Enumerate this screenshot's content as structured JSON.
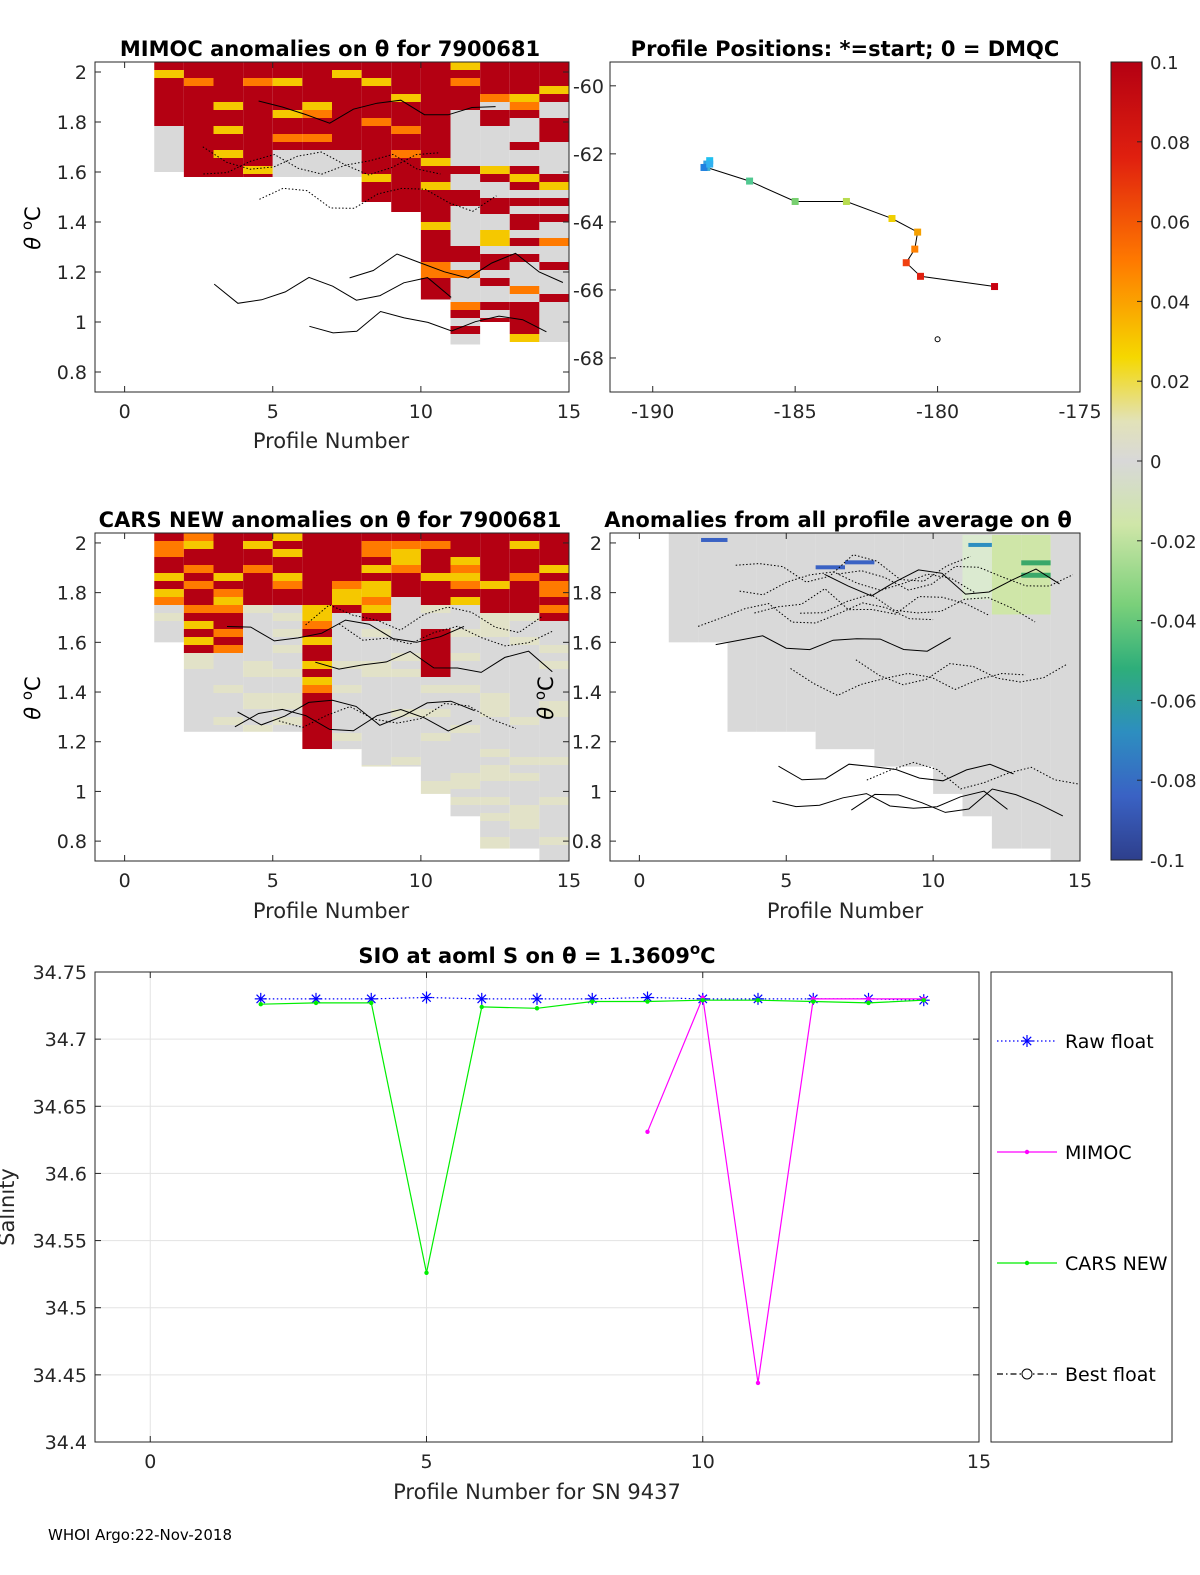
{
  "footer": "WHOI Argo:22-Nov-2018",
  "chart_data": [
    {
      "id": "mimoc",
      "type": "heatmap",
      "title": "MIMOC anomalies on θ  for 7900681",
      "xlabel": "Profile Number",
      "ylabel": "θ °C",
      "xlim": [
        -1,
        15
      ],
      "ylim": [
        0.72,
        2.04
      ],
      "xticks": [
        0,
        5,
        10,
        15
      ],
      "yticks": [
        0.8,
        1,
        1.2,
        1.4,
        1.6,
        1.8,
        2
      ],
      "profiles": [
        1,
        2,
        3,
        4,
        5,
        6,
        7,
        8,
        9,
        10,
        11,
        12,
        13,
        14
      ],
      "theta_min": [
        1.6,
        1.58,
        1.58,
        1.58,
        1.58,
        1.58,
        1.58,
        1.48,
        1.44,
        1.09,
        0.91,
        1.0,
        0.92,
        0.92
      ],
      "description_values": "anomaly range -0.1..0.1"
    },
    {
      "id": "positions",
      "type": "scatter",
      "title": "Profile Positions: *=start; 0 = DMQC",
      "xlim": [
        -191.5,
        -175
      ],
      "ylim": [
        -69,
        -59.3
      ],
      "xticks": [
        -190,
        -185,
        -180,
        -175
      ],
      "yticks": [
        -68,
        -66,
        -64,
        -62,
        -60
      ],
      "lon": [
        -178.0,
        -180.6,
        -181.1,
        -180.8,
        -180.7,
        -181.6,
        -183.2,
        -185.0,
        -186.6,
        -188.1,
        -188.1,
        -188.0,
        -188.2,
        -188.0
      ],
      "lat": [
        -65.9,
        -65.6,
        -65.2,
        -64.8,
        -64.3,
        -63.9,
        -63.4,
        -63.4,
        -62.8,
        -62.4,
        -62.3,
        -62.2,
        -62.4,
        -62.3
      ],
      "extra_marker": {
        "lon": -180.0,
        "lat": -67.45
      }
    },
    {
      "id": "cars",
      "type": "heatmap",
      "title": "CARS NEW anomalies on θ for 7900681",
      "xlabel": "Profile Number",
      "ylabel": "θ °C",
      "xlim": [
        -1,
        15
      ],
      "ylim": [
        0.72,
        2.04
      ],
      "xticks": [
        0,
        5,
        10,
        15
      ],
      "yticks": [
        0.8,
        1,
        1.2,
        1.4,
        1.6,
        1.8,
        2
      ],
      "profiles": [
        1,
        2,
        3,
        4,
        5,
        6,
        7,
        8,
        9,
        10,
        11,
        12,
        13,
        14
      ],
      "theta_min": [
        1.6,
        1.24,
        1.24,
        1.24,
        1.24,
        1.17,
        1.17,
        1.1,
        1.1,
        0.99,
        0.9,
        0.77,
        0.77,
        0.72
      ]
    },
    {
      "id": "avg",
      "type": "heatmap",
      "title": "Anomalies from all profile average on θ",
      "xlabel": "Profile Number",
      "xlim": [
        -1,
        15
      ],
      "ylim": [
        0.72,
        2.04
      ],
      "xticks": [
        0,
        5,
        10,
        15
      ],
      "yticks": [
        0.8,
        1,
        1.2,
        1.4,
        1.6,
        1.8,
        2
      ],
      "profiles": [
        1,
        2,
        3,
        4,
        5,
        6,
        7,
        8,
        9,
        10,
        11,
        12,
        13,
        14
      ],
      "theta_min": [
        1.6,
        1.6,
        1.24,
        1.24,
        1.24,
        1.17,
        1.17,
        1.1,
        1.1,
        0.99,
        0.9,
        0.77,
        0.77,
        0.72
      ]
    },
    {
      "id": "colorbar",
      "type": "colorbar",
      "range": [
        -0.1,
        0.1
      ],
      "tick_labels": [
        "0.1",
        "0.08",
        "0.06",
        "0.04",
        "0.02",
        "0",
        "-0.02",
        "-0.04",
        "-0.06",
        "-0.08",
        "-0.1"
      ],
      "tick_values": [
        0.1,
        0.08,
        0.06,
        0.04,
        0.02,
        0,
        -0.02,
        -0.04,
        -0.06,
        -0.08,
        -0.1
      ]
    },
    {
      "id": "salinity",
      "type": "line",
      "title": "SIO at aoml S on θ = 1.3609°C",
      "title_main": "SIO at aoml S on θ = 1.3609",
      "title_sup": "o",
      "title_unit": "C",
      "xlabel": "Profile Number for SN 9437",
      "ylabel": "Salinity",
      "xlim": [
        -1,
        15
      ],
      "ylim": [
        34.4,
        34.75
      ],
      "xticks": [
        0,
        5,
        10,
        15
      ],
      "yticks": [
        34.4,
        34.45,
        34.5,
        34.55,
        34.6,
        34.65,
        34.7,
        34.75
      ],
      "ytick_labels": [
        "34.4",
        "34.45",
        "34.5",
        "34.55",
        "34.6",
        "34.65",
        "34.7",
        "34.75"
      ],
      "grid": true,
      "series": [
        {
          "name": "Raw float",
          "color": "#0000ff",
          "x": [
            2,
            3,
            4,
            5,
            6,
            7,
            8,
            9,
            10,
            11,
            12,
            13,
            14
          ],
          "y": [
            34.73,
            34.73,
            34.73,
            34.731,
            34.73,
            34.73,
            34.73,
            34.731,
            34.73,
            34.73,
            34.73,
            34.73,
            34.729
          ]
        },
        {
          "name": "MIMOC",
          "color": "#ff00ff",
          "x": [
            9,
            10,
            11,
            12,
            13,
            14
          ],
          "y": [
            34.631,
            34.731,
            34.444,
            34.73,
            34.73,
            34.73
          ]
        },
        {
          "name": "CARS NEW",
          "color": "#00ee00",
          "x": [
            2,
            3,
            4,
            5,
            6,
            7,
            8,
            9,
            10,
            11,
            12,
            13,
            14
          ],
          "y": [
            34.726,
            34.727,
            34.727,
            34.526,
            34.724,
            34.723,
            34.728,
            34.728,
            34.729,
            34.729,
            34.728,
            34.727,
            34.729
          ]
        },
        {
          "name": "Best float",
          "color": "#000000",
          "x": [],
          "y": []
        }
      ]
    }
  ]
}
